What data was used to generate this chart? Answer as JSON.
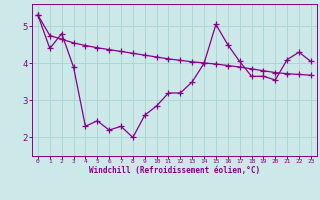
{
  "xlabel": "Windchill (Refroidissement éolien,°C)",
  "bg_color": "#cce8e8",
  "line_color": "#880088",
  "x": [
    0,
    1,
    2,
    3,
    4,
    5,
    6,
    7,
    8,
    9,
    10,
    11,
    12,
    13,
    14,
    15,
    16,
    17,
    18,
    19,
    20,
    21,
    22,
    23
  ],
  "y_jagged": [
    5.3,
    4.4,
    4.8,
    3.9,
    2.3,
    2.45,
    2.2,
    2.3,
    2.0,
    2.6,
    2.85,
    3.2,
    3.2,
    3.5,
    4.0,
    5.05,
    4.5,
    4.05,
    3.65,
    3.65,
    3.55,
    4.1,
    4.3,
    4.05
  ],
  "y_trend": [
    5.3,
    4.75,
    4.65,
    4.55,
    4.48,
    4.42,
    4.37,
    4.32,
    4.27,
    4.22,
    4.17,
    4.12,
    4.08,
    4.04,
    4.01,
    3.98,
    3.94,
    3.9,
    3.85,
    3.8,
    3.75,
    3.72,
    3.7,
    3.68
  ],
  "ylim": [
    1.5,
    5.6
  ],
  "xlim": [
    -0.5,
    23.5
  ],
  "yticks": [
    2,
    3,
    4,
    5
  ],
  "xticks": [
    0,
    1,
    2,
    3,
    4,
    5,
    6,
    7,
    8,
    9,
    10,
    11,
    12,
    13,
    14,
    15,
    16,
    17,
    18,
    19,
    20,
    21,
    22,
    23
  ],
  "grid_color": "#aad8d0",
  "markersize": 4,
  "linewidth": 0.9
}
